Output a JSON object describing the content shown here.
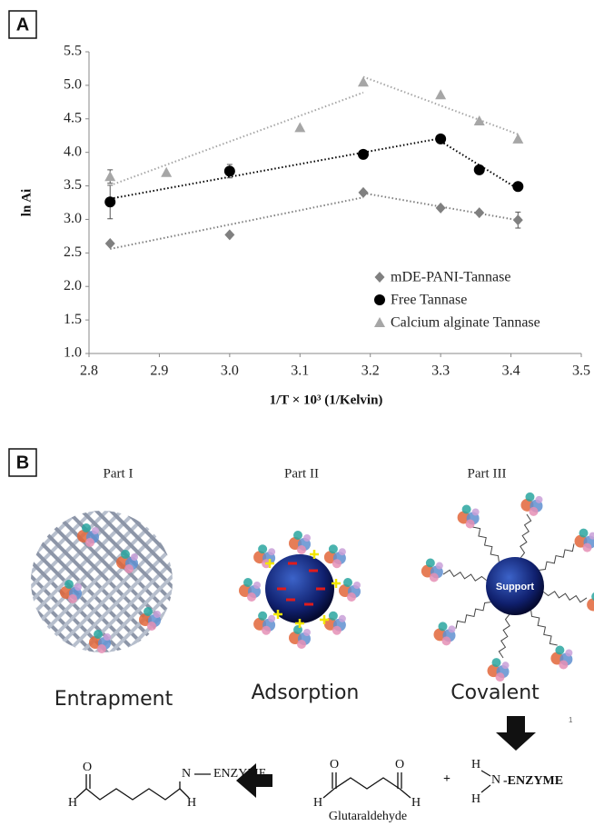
{
  "panel_labels": [
    "A",
    "B"
  ],
  "chart_data": {
    "type": "scatter",
    "x_label": "1/T × 10³ (1/Kelvin)",
    "y_label": "ln Ai",
    "xlim": [
      2.8,
      3.5
    ],
    "xticks": [
      2.8,
      2.9,
      {
        "value": 3,
        "label": "3.0"
      },
      3.1,
      3.2,
      3.3,
      3.4,
      3.5
    ],
    "ylim": [
      1,
      5.5
    ],
    "yticks": [
      {
        "value": 1,
        "label": "1.0"
      },
      1.5,
      {
        "value": 2,
        "label": "2.0"
      },
      2.5,
      {
        "value": 3,
        "label": "3.0"
      },
      3.5,
      {
        "value": 4,
        "label": "4.0"
      },
      4.5,
      {
        "value": 5,
        "label": "5.0"
      },
      5.5
    ],
    "legend": "lower right",
    "trendline": "dotted",
    "series": [
      {
        "name": "mDE-PANI-Tannase",
        "color": "#808080",
        "marker": "diamond",
        "x": [
          2.83,
          3.0,
          3.19,
          3.3,
          3.355,
          3.41
        ],
        "values": [
          2.64,
          2.77,
          3.4,
          3.17,
          3.1,
          2.99
        ],
        "errors": [
          null,
          null,
          null,
          null,
          null,
          0.12
        ]
      },
      {
        "name": "Free Tannase",
        "color": "#000000",
        "marker": "circle",
        "x": [
          2.83,
          3.0,
          3.19,
          3.3,
          3.355,
          3.41
        ],
        "values": [
          3.26,
          3.72,
          3.97,
          4.2,
          3.74,
          3.49
        ],
        "errors": [
          0.25,
          0.1,
          null,
          null,
          null,
          null
        ]
      },
      {
        "name": "Calcium alginate Tannase",
        "color": "#a6a6a6",
        "marker": "triangle",
        "x": [
          2.83,
          2.91,
          3.1,
          3.19,
          3.3,
          3.355,
          3.41
        ],
        "values": [
          3.64,
          3.7,
          4.37,
          5.05,
          4.86,
          4.47,
          4.2
        ],
        "errors": [
          0.1,
          null,
          null,
          null,
          null,
          null,
          null
        ]
      }
    ]
  },
  "panel_b": {
    "parts": [
      {
        "title": "Part I",
        "label": "Entrapment"
      },
      {
        "title": "Part II",
        "label": "Adsorption"
      },
      {
        "title": "Part III",
        "label": "Covalent",
        "support": "Support"
      }
    ],
    "reaction": {
      "product": {
        "o": "O",
        "h1": "H",
        "n": "N",
        "h2": "H",
        "group": "ENZYME"
      },
      "glutaraldehyde": {
        "o1": "O",
        "o2": "O",
        "h1": "H",
        "h2": "H",
        "name": "Glutaraldehyde"
      },
      "plus": "+",
      "amine": {
        "h1": "H",
        "n": "N",
        "h2": "H",
        "group": "-ENZYME"
      }
    },
    "page_number": "1"
  }
}
